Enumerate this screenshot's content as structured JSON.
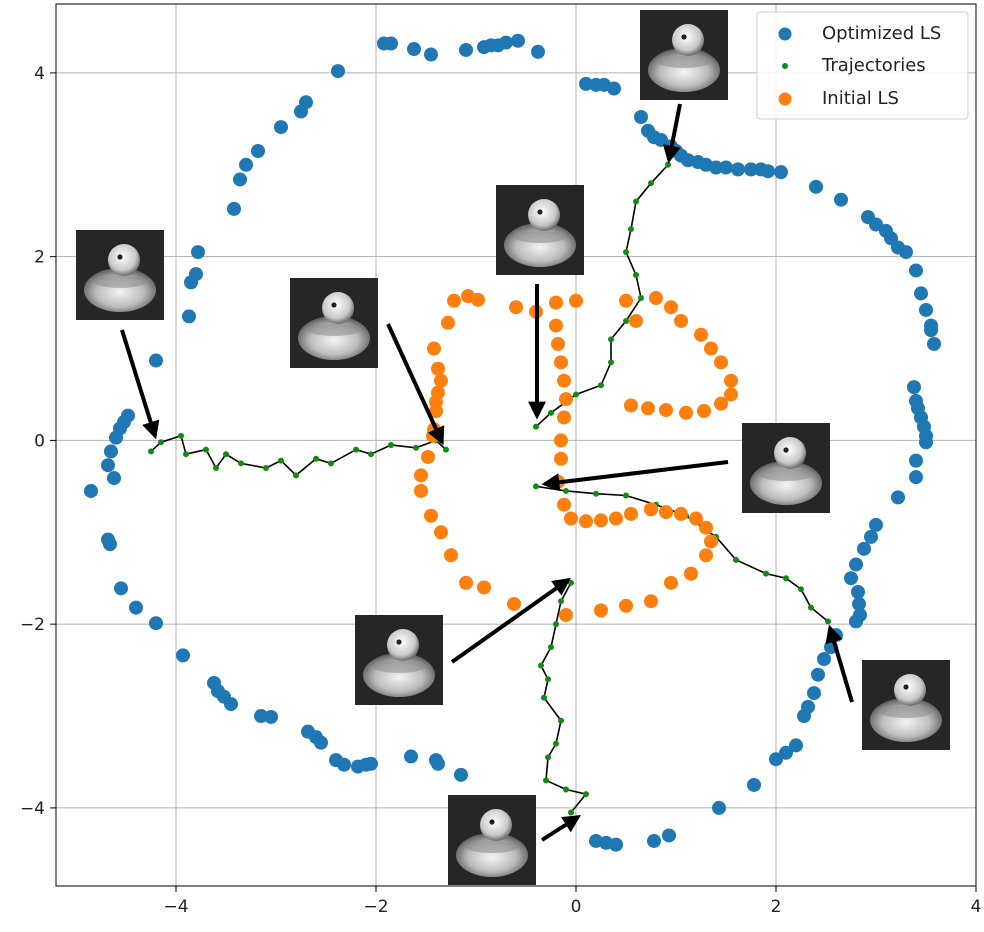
{
  "chart_data": {
    "type": "scatter",
    "title": "",
    "xlabel": "",
    "ylabel": "",
    "xlim": [
      -5.2,
      4.0
    ],
    "ylim": [
      -4.85,
      4.75
    ],
    "xticks": [
      -4,
      -2,
      0,
      2,
      4
    ],
    "yticks": [
      -4,
      -2,
      0,
      2,
      4
    ],
    "x_tick_labels": [
      "−4",
      "−2",
      "0",
      "2",
      "4"
    ],
    "y_tick_labels": [
      "−4",
      "−2",
      "0",
      "2",
      "4"
    ],
    "grid": true,
    "legend_position": "top-right",
    "legend": [
      {
        "label": "Optimized LS",
        "marker": "large-dot",
        "color": "#1f77b4"
      },
      {
        "label": "Trajectories",
        "marker": "small-dot",
        "color": "#138a13"
      },
      {
        "label": "Initial LS",
        "marker": "large-dot",
        "color": "#ff7f0e"
      }
    ],
    "series": [
      {
        "name": "Optimized LS",
        "color": "#1f77b4",
        "points": [
          [
            -4.85,
            -0.55
          ],
          [
            -4.68,
            -1.08
          ],
          [
            -4.66,
            -1.13
          ],
          [
            -4.62,
            -0.41
          ],
          [
            -4.68,
            -0.27
          ],
          [
            -4.65,
            -0.12
          ],
          [
            -4.6,
            0.03
          ],
          [
            -4.56,
            0.13
          ],
          [
            -4.52,
            0.2
          ],
          [
            -4.48,
            0.27
          ],
          [
            -4.55,
            -1.61
          ],
          [
            -4.4,
            -1.82
          ],
          [
            -4.2,
            -1.99
          ],
          [
            -4.2,
            0.87
          ],
          [
            -3.93,
            -2.34
          ],
          [
            -3.87,
            1.35
          ],
          [
            -3.85,
            1.72
          ],
          [
            -3.8,
            1.81
          ],
          [
            -3.78,
            2.05
          ],
          [
            -3.62,
            -2.64
          ],
          [
            -3.58,
            -2.73
          ],
          [
            -3.52,
            -2.79
          ],
          [
            -3.45,
            -2.87
          ],
          [
            -3.42,
            2.52
          ],
          [
            -3.36,
            2.84
          ],
          [
            -3.3,
            3.0
          ],
          [
            -3.18,
            3.15
          ],
          [
            -3.15,
            -3.0
          ],
          [
            -3.05,
            -3.01
          ],
          [
            -2.95,
            3.41
          ],
          [
            -2.75,
            3.58
          ],
          [
            -2.7,
            3.68
          ],
          [
            -2.68,
            -3.17
          ],
          [
            -2.6,
            -3.23
          ],
          [
            -2.55,
            -3.29
          ],
          [
            -2.4,
            -3.48
          ],
          [
            -2.38,
            4.02
          ],
          [
            -2.32,
            -3.53
          ],
          [
            -2.18,
            -3.55
          ],
          [
            -2.1,
            -3.53
          ],
          [
            -2.05,
            -3.52
          ],
          [
            -1.92,
            4.32
          ],
          [
            -1.85,
            4.32
          ],
          [
            -1.65,
            -3.44
          ],
          [
            -1.62,
            4.26
          ],
          [
            -1.45,
            4.2
          ],
          [
            -1.4,
            -3.48
          ],
          [
            -1.38,
            -3.52
          ],
          [
            -1.15,
            -3.64
          ],
          [
            -1.1,
            4.25
          ],
          [
            -0.92,
            4.28
          ],
          [
            -0.85,
            4.3
          ],
          [
            -0.78,
            4.3
          ],
          [
            -0.7,
            4.33
          ],
          [
            -0.58,
            4.35
          ],
          [
            -0.38,
            4.23
          ],
          [
            0.1,
            3.88
          ],
          [
            0.2,
            3.87
          ],
          [
            0.28,
            3.87
          ],
          [
            0.38,
            3.83
          ],
          [
            0.2,
            -4.36
          ],
          [
            0.3,
            -4.38
          ],
          [
            0.4,
            -4.4
          ],
          [
            0.65,
            3.52
          ],
          [
            0.72,
            3.37
          ],
          [
            0.78,
            3.3
          ],
          [
            0.85,
            3.27
          ],
          [
            0.95,
            3.2
          ],
          [
            1.0,
            3.15
          ],
          [
            1.05,
            3.1
          ],
          [
            1.12,
            3.05
          ],
          [
            1.22,
            3.03
          ],
          [
            1.3,
            3.0
          ],
          [
            1.4,
            2.97
          ],
          [
            1.5,
            2.97
          ],
          [
            1.62,
            2.95
          ],
          [
            1.75,
            2.95
          ],
          [
            1.85,
            2.95
          ],
          [
            1.92,
            2.93
          ],
          [
            2.05,
            2.92
          ],
          [
            0.78,
            -4.36
          ],
          [
            0.93,
            -4.3
          ],
          [
            1.43,
            -4.0
          ],
          [
            1.78,
            -3.75
          ],
          [
            2.0,
            -3.47
          ],
          [
            2.1,
            -3.4
          ],
          [
            2.2,
            -3.32
          ],
          [
            2.28,
            -3.0
          ],
          [
            2.32,
            -2.9
          ],
          [
            2.38,
            -2.75
          ],
          [
            2.42,
            -2.55
          ],
          [
            2.48,
            -2.38
          ],
          [
            2.55,
            -2.25
          ],
          [
            2.6,
            -2.12
          ],
          [
            2.4,
            2.76
          ],
          [
            2.65,
            2.62
          ],
          [
            2.92,
            2.43
          ],
          [
            3.0,
            2.35
          ],
          [
            3.1,
            2.28
          ],
          [
            3.15,
            2.2
          ],
          [
            3.22,
            2.1
          ],
          [
            3.3,
            2.05
          ],
          [
            3.4,
            1.85
          ],
          [
            3.45,
            1.6
          ],
          [
            3.5,
            1.42
          ],
          [
            3.55,
            1.25
          ],
          [
            3.58,
            1.05
          ],
          [
            3.55,
            1.2
          ],
          [
            3.38,
            0.58
          ],
          [
            3.4,
            0.43
          ],
          [
            3.42,
            0.35
          ],
          [
            3.45,
            0.25
          ],
          [
            3.48,
            0.15
          ],
          [
            3.5,
            0.05
          ],
          [
            3.5,
            -0.02
          ],
          [
            3.4,
            -0.22
          ],
          [
            3.4,
            -0.4
          ],
          [
            3.22,
            -0.62
          ],
          [
            3.0,
            -0.92
          ],
          [
            2.95,
            -1.05
          ],
          [
            2.88,
            -1.18
          ],
          [
            2.8,
            -1.35
          ],
          [
            2.75,
            -1.5
          ],
          [
            2.82,
            -1.65
          ],
          [
            2.83,
            -1.78
          ],
          [
            2.84,
            -1.9
          ],
          [
            2.8,
            -1.97
          ]
        ]
      },
      {
        "name": "Trajectories",
        "color": "#138a13",
        "segments": [
          [
            [
              -4.25,
              -0.12
            ],
            [
              -4.15,
              -0.02
            ],
            [
              -3.95,
              0.05
            ],
            [
              -3.9,
              -0.15
            ],
            [
              -3.7,
              -0.1
            ],
            [
              -3.6,
              -0.3
            ],
            [
              -3.5,
              -0.15
            ],
            [
              -3.35,
              -0.25
            ],
            [
              -3.1,
              -0.3
            ],
            [
              -2.95,
              -0.22
            ],
            [
              -2.8,
              -0.38
            ],
            [
              -2.6,
              -0.2
            ],
            [
              -2.45,
              -0.25
            ],
            [
              -2.2,
              -0.1
            ],
            [
              -2.05,
              -0.15
            ],
            [
              -1.85,
              -0.05
            ],
            [
              -1.6,
              -0.08
            ],
            [
              -1.4,
              0.0
            ],
            [
              -1.3,
              -0.1
            ]
          ],
          [
            [
              -0.4,
              0.15
            ],
            [
              -0.25,
              0.3
            ],
            [
              0.0,
              0.5
            ],
            [
              0.25,
              0.6
            ],
            [
              0.35,
              0.85
            ],
            [
              0.35,
              1.1
            ],
            [
              0.5,
              1.3
            ],
            [
              0.65,
              1.55
            ],
            [
              0.6,
              1.8
            ],
            [
              0.5,
              2.05
            ],
            [
              0.55,
              2.3
            ],
            [
              0.6,
              2.6
            ],
            [
              0.75,
              2.8
            ],
            [
              0.92,
              3.0
            ]
          ],
          [
            [
              -0.4,
              -0.5
            ],
            [
              -0.1,
              -0.55
            ],
            [
              0.2,
              -0.58
            ],
            [
              0.5,
              -0.6
            ],
            [
              0.8,
              -0.7
            ],
            [
              1.1,
              -0.82
            ],
            [
              1.4,
              -1.05
            ],
            [
              1.6,
              -1.3
            ],
            [
              1.9,
              -1.45
            ],
            [
              2.1,
              -1.5
            ],
            [
              2.25,
              -1.62
            ],
            [
              2.35,
              -1.82
            ],
            [
              2.52,
              -1.97
            ]
          ],
          [
            [
              -0.05,
              -1.55
            ],
            [
              -0.15,
              -1.75
            ],
            [
              -0.2,
              -2.0
            ],
            [
              -0.25,
              -2.25
            ],
            [
              -0.35,
              -2.45
            ],
            [
              -0.28,
              -2.6
            ],
            [
              -0.32,
              -2.8
            ],
            [
              -0.15,
              -3.05
            ],
            [
              -0.2,
              -3.3
            ],
            [
              -0.28,
              -3.45
            ],
            [
              -0.3,
              -3.7
            ],
            [
              -0.1,
              -3.8
            ],
            [
              0.1,
              -3.85
            ],
            [
              -0.05,
              -4.05
            ]
          ]
        ]
      },
      {
        "name": "Initial LS",
        "color": "#ff7f0e",
        "points": [
          [
            -1.42,
            1.0
          ],
          [
            -1.38,
            0.78
          ],
          [
            -1.35,
            0.65
          ],
          [
            -1.38,
            0.52
          ],
          [
            -1.4,
            0.42
          ],
          [
            -1.4,
            0.32
          ],
          [
            -1.42,
            0.12
          ],
          [
            -1.43,
            0.05
          ],
          [
            -1.48,
            -0.18
          ],
          [
            -1.55,
            -0.38
          ],
          [
            -1.55,
            -0.55
          ],
          [
            -1.45,
            -0.82
          ],
          [
            -1.35,
            -1.0
          ],
          [
            -1.25,
            -1.25
          ],
          [
            -1.1,
            -1.55
          ],
          [
            -0.92,
            -1.6
          ],
          [
            -0.62,
            -1.78
          ],
          [
            -1.28,
            1.28
          ],
          [
            -1.22,
            1.52
          ],
          [
            -1.08,
            1.57
          ],
          [
            -0.98,
            1.53
          ],
          [
            -0.6,
            1.45
          ],
          [
            -0.4,
            1.4
          ],
          [
            -0.2,
            1.5
          ],
          [
            0.0,
            1.52
          ],
          [
            -0.2,
            1.25
          ],
          [
            -0.18,
            1.05
          ],
          [
            -0.15,
            0.85
          ],
          [
            -0.12,
            0.65
          ],
          [
            -0.1,
            0.45
          ],
          [
            -0.12,
            0.25
          ],
          [
            -0.15,
            0.0
          ],
          [
            -0.15,
            -0.2
          ],
          [
            -0.18,
            -0.45
          ],
          [
            -0.12,
            -0.7
          ],
          [
            -0.05,
            -0.85
          ],
          [
            0.1,
            -0.88
          ],
          [
            0.25,
            -0.87
          ],
          [
            0.4,
            -0.85
          ],
          [
            0.55,
            -0.8
          ],
          [
            0.75,
            -0.75
          ],
          [
            0.9,
            -0.78
          ],
          [
            1.05,
            -0.8
          ],
          [
            1.2,
            -0.85
          ],
          [
            1.3,
            -0.95
          ],
          [
            1.35,
            -1.1
          ],
          [
            1.3,
            -1.25
          ],
          [
            1.15,
            -1.45
          ],
          [
            0.95,
            -1.55
          ],
          [
            0.75,
            -1.75
          ],
          [
            0.5,
            -1.8
          ],
          [
            0.25,
            -1.85
          ],
          [
            -0.1,
            -1.9
          ],
          [
            0.5,
            1.52
          ],
          [
            0.6,
            1.3
          ],
          [
            0.8,
            1.55
          ],
          [
            0.95,
            1.45
          ],
          [
            1.05,
            1.3
          ],
          [
            1.25,
            1.15
          ],
          [
            1.35,
            1.0
          ],
          [
            1.45,
            0.85
          ],
          [
            1.55,
            0.65
          ],
          [
            1.55,
            0.5
          ],
          [
            1.45,
            0.4
          ],
          [
            1.28,
            0.32
          ],
          [
            1.1,
            0.3
          ],
          [
            0.9,
            0.33
          ],
          [
            0.72,
            0.35
          ],
          [
            0.55,
            0.38
          ]
        ]
      }
    ],
    "annotations": [
      {
        "label": "duck-view-top",
        "xy": [
          0.92,
          3.0
        ]
      },
      {
        "label": "duck-view-left",
        "xy": [
          -4.2,
          -0.02
        ]
      },
      {
        "label": "duck-view-mid-left",
        "xy": [
          -1.3,
          -0.08
        ]
      },
      {
        "label": "duck-view-center-top",
        "xy": [
          -0.42,
          0.2
        ]
      },
      {
        "label": "duck-view-center-right",
        "xy": [
          -0.35,
          -0.45
        ]
      },
      {
        "label": "duck-view-lower-center",
        "xy": [
          -0.05,
          -1.5
        ]
      },
      {
        "label": "duck-view-right",
        "xy": [
          2.52,
          -1.97
        ]
      },
      {
        "label": "duck-view-bottom",
        "xy": [
          0.0,
          -4.12
        ]
      }
    ]
  }
}
